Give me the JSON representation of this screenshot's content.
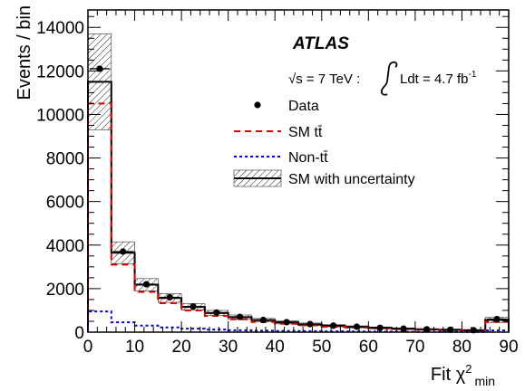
{
  "chart_data": {
    "type": "histogram",
    "experiment": "ATLAS",
    "energy_label": {
      "sqrt_s": "√s = 7 TeV :",
      "lumi": "Ldt = 4.7 fb",
      "lumi_exp": "-1"
    },
    "xlabel": "Fit χ",
    "xlabel_sup": "2",
    "xlabel_sub": "min",
    "ylabel": "Events / bin",
    "xlim": [
      0,
      90
    ],
    "ylim": [
      0,
      14800
    ],
    "xticks": [
      0,
      10,
      20,
      30,
      40,
      50,
      60,
      70,
      80,
      90
    ],
    "yticks": [
      0,
      2000,
      4000,
      6000,
      8000,
      10000,
      12000,
      14000
    ],
    "bin_edges": [
      0,
      5,
      10,
      15,
      20,
      25,
      30,
      35,
      40,
      45,
      50,
      55,
      60,
      65,
      70,
      75,
      80,
      85,
      90
    ],
    "data_points": [
      {
        "x": 2.5,
        "y": 12100
      },
      {
        "x": 7.5,
        "y": 3700
      },
      {
        "x": 12.5,
        "y": 2200
      },
      {
        "x": 17.5,
        "y": 1600
      },
      {
        "x": 22.5,
        "y": 1180
      },
      {
        "x": 27.5,
        "y": 900
      },
      {
        "x": 32.5,
        "y": 700
      },
      {
        "x": 37.5,
        "y": 560
      },
      {
        "x": 42.5,
        "y": 460
      },
      {
        "x": 47.5,
        "y": 370
      },
      {
        "x": 52.5,
        "y": 300
      },
      {
        "x": 57.5,
        "y": 250
      },
      {
        "x": 62.5,
        "y": 200
      },
      {
        "x": 67.5,
        "y": 160
      },
      {
        "x": 72.5,
        "y": 130
      },
      {
        "x": 77.5,
        "y": 110
      },
      {
        "x": 82.5,
        "y": 90
      },
      {
        "x": 87.5,
        "y": 600
      }
    ],
    "series": [
      {
        "name": "SM with uncertainty",
        "values": [
          11500,
          3650,
          2180,
          1570,
          1160,
          880,
          690,
          550,
          450,
          360,
          295,
          245,
          200,
          160,
          130,
          110,
          90,
          560
        ],
        "uncertainty": [
          2200,
          500,
          280,
          200,
          150,
          120,
          100,
          80,
          70,
          60,
          50,
          45,
          40,
          35,
          30,
          30,
          25,
          120
        ],
        "color": "#000000"
      },
      {
        "name": "SM tt̄",
        "values": [
          10500,
          3100,
          1850,
          1330,
          990,
          750,
          590,
          470,
          385,
          310,
          255,
          212,
          172,
          138,
          112,
          95,
          78,
          480
        ],
        "color": "#dd0000"
      },
      {
        "name": "Non-tt̄",
        "values": [
          950,
          450,
          300,
          220,
          160,
          120,
          90,
          70,
          55,
          45,
          38,
          32,
          27,
          22,
          18,
          15,
          12,
          80
        ],
        "color": "#0000dd"
      }
    ],
    "legend": [
      {
        "label": "Data",
        "style": "marker"
      },
      {
        "label": "SM tt̄",
        "style": "dashed-red"
      },
      {
        "label": "Non-tt̄",
        "style": "dotted-blue"
      },
      {
        "label": "SM with uncertainty",
        "style": "hatched"
      }
    ]
  }
}
